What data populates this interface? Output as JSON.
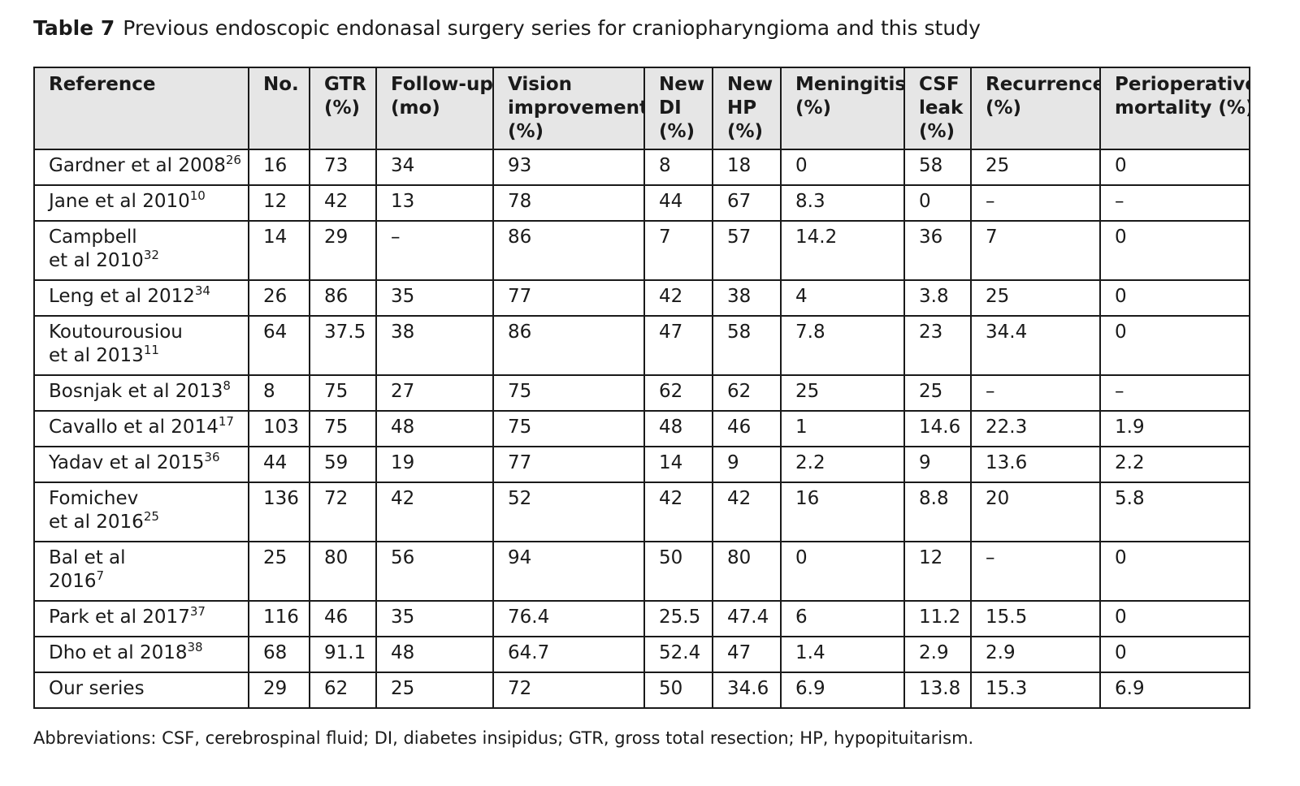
{
  "caption": {
    "label": "Table 7",
    "text": "Previous endoscopic endonasal surgery series for craniopharyngioma and this study"
  },
  "table": {
    "headers": [
      [
        "Reference"
      ],
      [
        "No."
      ],
      [
        "GTR",
        "(%)"
      ],
      [
        "Follow-up",
        "(mo)"
      ],
      [
        "Vision",
        "improvement",
        "(%)"
      ],
      [
        "New",
        "DI",
        "(%)"
      ],
      [
        "New",
        "HP",
        "(%)"
      ],
      [
        "Meningitis",
        "(%)"
      ],
      [
        "CSF",
        "leak",
        "(%)"
      ],
      [
        "Recurrence",
        "(%)"
      ],
      [
        "Perioperative",
        "mortality (%)"
      ]
    ],
    "rows": [
      {
        "ref": [
          "Gardner et al 2008"
        ],
        "sup": "26",
        "cells": [
          "16",
          "73",
          "34",
          "93",
          "8",
          "18",
          "0",
          "58",
          "25",
          "0"
        ]
      },
      {
        "ref": [
          "Jane et al 2010"
        ],
        "sup": "10",
        "cells": [
          "12",
          "42",
          "13",
          "78",
          "44",
          "67",
          "8.3",
          "0",
          "–",
          "–"
        ]
      },
      {
        "ref": [
          "Campbell",
          "et al 2010"
        ],
        "sup": "32",
        "cells": [
          "14",
          "29",
          "–",
          "86",
          "7",
          "57",
          "14.2",
          "36",
          "7",
          "0"
        ]
      },
      {
        "ref": [
          "Leng et al 2012"
        ],
        "sup": "34",
        "cells": [
          "26",
          "86",
          "35",
          "77",
          "42",
          "38",
          "4",
          "3.8",
          "25",
          "0"
        ]
      },
      {
        "ref": [
          "Koutourousiou",
          "et al 2013"
        ],
        "sup": "11",
        "cells": [
          "64",
          "37.5",
          "38",
          "86",
          "47",
          "58",
          "7.8",
          "23",
          "34.4",
          "0"
        ]
      },
      {
        "ref": [
          "Bosnjak et al 2013"
        ],
        "sup": "8",
        "cells": [
          "8",
          "75",
          "27",
          "75",
          "62",
          "62",
          "25",
          "25",
          "–",
          "–"
        ]
      },
      {
        "ref": [
          "Cavallo et al 2014"
        ],
        "sup": "17",
        "cells": [
          "103",
          "75",
          "48",
          "75",
          "48",
          "46",
          "1",
          "14.6",
          "22.3",
          "1.9"
        ]
      },
      {
        "ref": [
          "Yadav et al 2015"
        ],
        "sup": "36",
        "cells": [
          "44",
          "59",
          "19",
          "77",
          "14",
          "9",
          "2.2",
          "9",
          "13.6",
          "2.2"
        ]
      },
      {
        "ref": [
          "Fomichev",
          "et al 2016"
        ],
        "sup": "25",
        "cells": [
          "136",
          "72",
          "42",
          "52",
          "42",
          "42",
          "16",
          "8.8",
          "20",
          "5.8"
        ]
      },
      {
        "ref": [
          "Bal et al",
          "2016"
        ],
        "sup": "7",
        "cells": [
          "25",
          "80",
          "56",
          "94",
          "50",
          "80",
          "0",
          "12",
          "–",
          "0"
        ]
      },
      {
        "ref": [
          "Park et al 2017"
        ],
        "sup": "37",
        "cells": [
          "116",
          "46",
          "35",
          "76.4",
          "25.5",
          "47.4",
          "6",
          "11.2",
          "15.5",
          "0"
        ]
      },
      {
        "ref": [
          "Dho et al 2018"
        ],
        "sup": "38",
        "cells": [
          "68",
          "91.1",
          "48",
          "64.7",
          "52.4",
          "47",
          "1.4",
          "2.9",
          "2.9",
          "0"
        ]
      },
      {
        "ref": [
          "Our series"
        ],
        "sup": "",
        "cells": [
          "29",
          "62",
          "25",
          "72",
          "50",
          "34.6",
          "6.9",
          "13.8",
          "15.3",
          "6.9"
        ]
      }
    ]
  },
  "footnote": "Abbreviations: CSF, cerebrospinal fluid; DI, diabetes insipidus; GTR, gross total resection; HP, hypopituitarism."
}
